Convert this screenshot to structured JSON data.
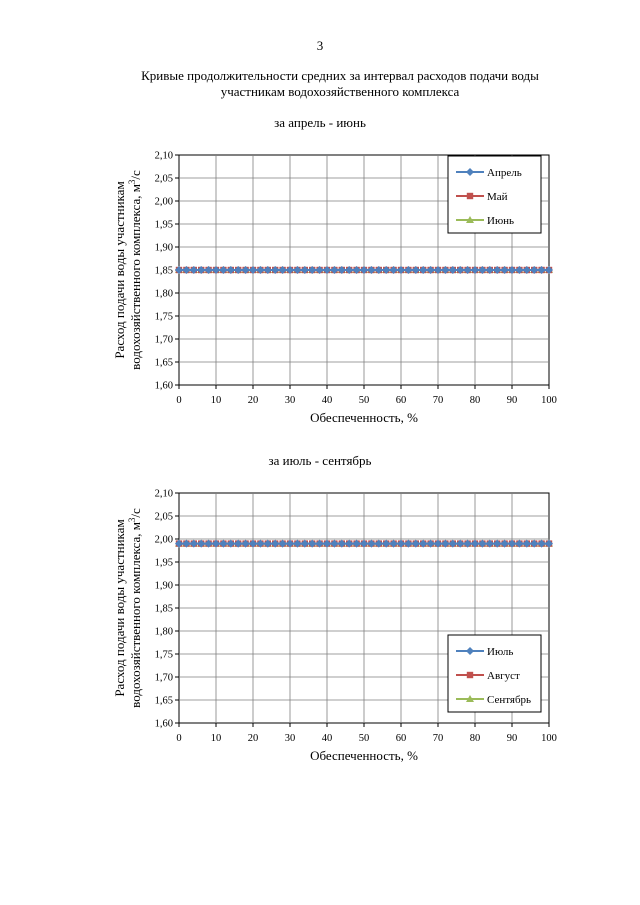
{
  "page": {
    "number": "3",
    "title_line1": "Кривые продолжительности средних за интервал расходов подачи воды",
    "title_line2": "участникам водохозяйственного комплекса"
  },
  "chart_data": [
    {
      "type": "line",
      "title": "за апрель - июнь",
      "xlabel": "Обеспеченность, %",
      "ylabel_line1": "Расход подачи воды участникам",
      "ylabel_line2": "водохозяйственного комплекса, м",
      "ylabel_sup": "3",
      "ylabel_tail": "/с",
      "xlim": [
        0,
        100
      ],
      "ylim": [
        1.6,
        2.1
      ],
      "x_ticks": [
        "0",
        "10",
        "20",
        "30",
        "40",
        "50",
        "60",
        "70",
        "80",
        "90",
        "100"
      ],
      "y_ticks": [
        "1,60",
        "1,65",
        "1,70",
        "1,75",
        "1,80",
        "1,85",
        "1,90",
        "1,95",
        "2,00",
        "2,05",
        "2,10"
      ],
      "grid": true,
      "legend_position": "top-right",
      "x": [
        0,
        2,
        4,
        6,
        8,
        10,
        12,
        14,
        16,
        18,
        20,
        22,
        24,
        26,
        28,
        30,
        32,
        34,
        36,
        38,
        40,
        42,
        44,
        46,
        48,
        50,
        52,
        54,
        56,
        58,
        60,
        62,
        64,
        66,
        68,
        70,
        72,
        74,
        76,
        78,
        80,
        82,
        84,
        86,
        88,
        90,
        92,
        94,
        96,
        98,
        100
      ],
      "series": [
        {
          "name": "Апрель",
          "color": "#4f81bd",
          "marker": "diamond",
          "value": 1.85
        },
        {
          "name": "Май",
          "color": "#c0504d",
          "marker": "square",
          "value": 1.85
        },
        {
          "name": "Июнь",
          "color": "#9bbb59",
          "marker": "triangle",
          "value": 1.85
        }
      ]
    },
    {
      "type": "line",
      "title": "за июль - сентябрь",
      "xlabel": "Обеспеченность, %",
      "ylabel_line1": "Расход подачи воды участникам",
      "ylabel_line2": "водохозяйственного комплекса, м",
      "ylabel_sup": "3",
      "ylabel_tail": "/с",
      "xlim": [
        0,
        100
      ],
      "ylim": [
        1.6,
        2.1
      ],
      "x_ticks": [
        "0",
        "10",
        "20",
        "30",
        "40",
        "50",
        "60",
        "70",
        "80",
        "90",
        "100"
      ],
      "y_ticks": [
        "1,60",
        "1,65",
        "1,70",
        "1,75",
        "1,80",
        "1,85",
        "1,90",
        "1,95",
        "2,00",
        "2,05",
        "2,10"
      ],
      "grid": true,
      "legend_position": "bottom-right",
      "x": [
        0,
        2,
        4,
        6,
        8,
        10,
        12,
        14,
        16,
        18,
        20,
        22,
        24,
        26,
        28,
        30,
        32,
        34,
        36,
        38,
        40,
        42,
        44,
        46,
        48,
        50,
        52,
        54,
        56,
        58,
        60,
        62,
        64,
        66,
        68,
        70,
        72,
        74,
        76,
        78,
        80,
        82,
        84,
        86,
        88,
        90,
        92,
        94,
        96,
        98,
        100
      ],
      "series": [
        {
          "name": "Июль",
          "color": "#4f81bd",
          "marker": "diamond",
          "value": 1.99
        },
        {
          "name": "Август",
          "color": "#c0504d",
          "marker": "square",
          "value": 1.99
        },
        {
          "name": "Сентябрь",
          "color": "#9bbb59",
          "marker": "triangle",
          "value": 1.99
        }
      ]
    }
  ]
}
